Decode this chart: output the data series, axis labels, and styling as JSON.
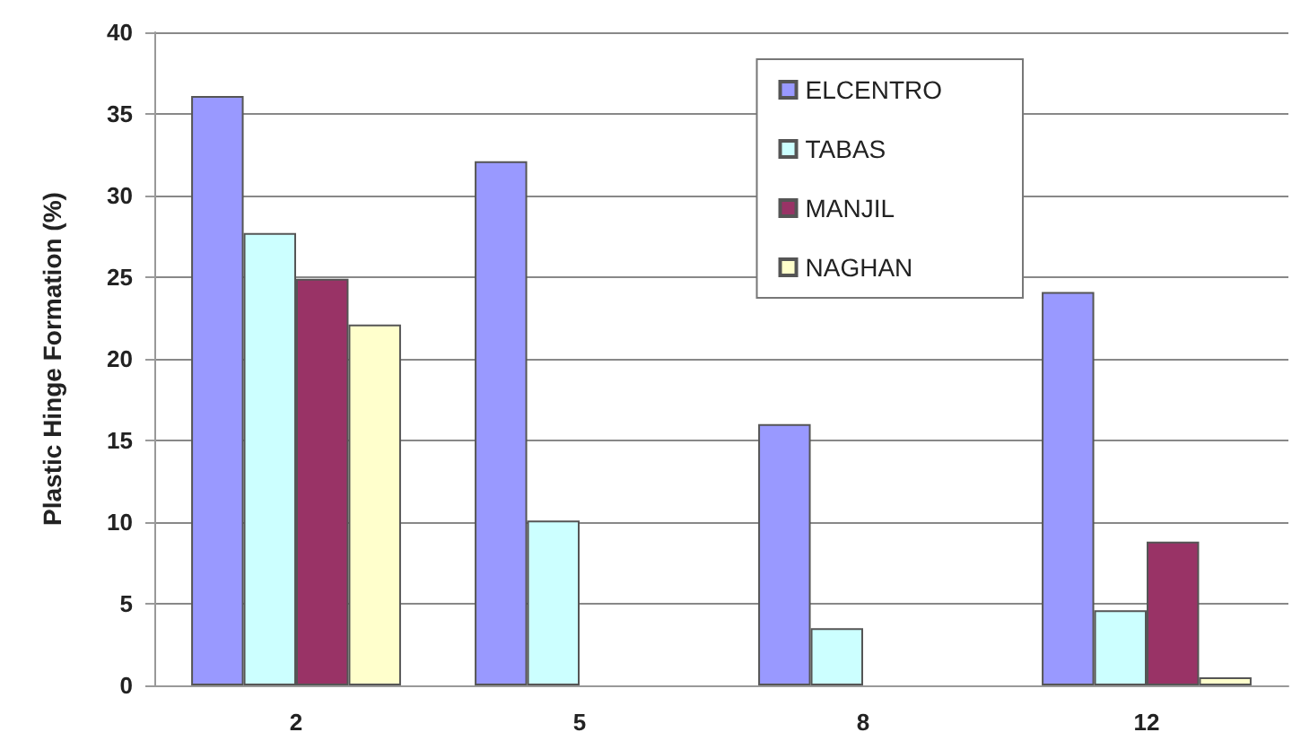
{
  "chart_data": {
    "type": "bar",
    "ylabel": "Plastic Hinge Formation (%)",
    "categories": [
      "2",
      "5",
      "8",
      "12"
    ],
    "series": [
      {
        "name": "ELCENTRO",
        "color": "#9999ff",
        "values": [
          36.1,
          32.1,
          16.0,
          24.1
        ]
      },
      {
        "name": "TABAS",
        "color": "#ccffff",
        "values": [
          27.7,
          10.1,
          3.5,
          4.6
        ]
      },
      {
        "name": "MANJIL",
        "color": "#993366",
        "values": [
          24.9,
          null,
          null,
          8.8
        ]
      },
      {
        "name": "NAGHAN",
        "color": "#ffffcc",
        "values": [
          22.1,
          null,
          null,
          0.5
        ]
      }
    ],
    "ylim": [
      0,
      40
    ],
    "yticks": [
      0,
      5,
      10,
      15,
      20,
      25,
      30,
      35,
      40
    ],
    "grid": "y",
    "legend": "top right"
  }
}
